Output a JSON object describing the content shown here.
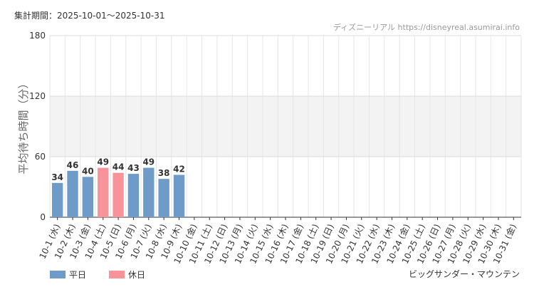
{
  "header": "集計期間：2025-10-01～2025-10-31",
  "source": "ディズニーリアル https://disneyreal.asumirai.info",
  "chart_data": {
    "type": "bar",
    "y_label": "平均待ち時間（分）",
    "caption": "ビッグサンダー・マウンテン",
    "categories": [
      "10-1 (水)",
      "10-2 (木)",
      "10-3 (金)",
      "10-4 (土)",
      "10-5 (日)",
      "10-6 (月)",
      "10-7 (火)",
      "10-8 (水)",
      "10-9 (木)",
      "10-10 (金)",
      "10-11 (土)",
      "10-12 (日)",
      "10-13 (月)",
      "10-14 (火)",
      "10-15 (水)",
      "10-16 (木)",
      "10-17 (金)",
      "10-18 (土)",
      "10-19 (日)",
      "10-20 (月)",
      "10-21 (火)",
      "10-22 (水)",
      "10-23 (木)",
      "10-24 (金)",
      "10-25 (土)",
      "10-26 (日)",
      "10-27 (月)",
      "10-28 (火)",
      "10-29 (水)",
      "10-30 (木)",
      "10-31 (金)"
    ],
    "category_colors": [
      "#333333",
      "#333333",
      "#333333",
      "#f07f86",
      "#f07f86",
      "#333333",
      "#333333",
      "#333333",
      "#333333",
      "#333333",
      "#f07f86",
      "#f07f86",
      "#f07f86",
      "#333333",
      "#333333",
      "#333333",
      "#333333",
      "#f07f86",
      "#f07f86",
      "#333333",
      "#333333",
      "#333333",
      "#333333",
      "#333333",
      "#f07f86",
      "#f07f86",
      "#333333",
      "#333333",
      "#333333",
      "#333333",
      "#333333"
    ],
    "series": [
      {
        "name": "平日",
        "color": "#6f9bc8",
        "label_color": "#4a7fb5",
        "values": [
          34,
          46,
          40,
          null,
          null,
          43,
          49,
          38,
          42,
          null,
          null,
          null,
          null,
          null,
          null,
          null,
          null,
          null,
          null,
          null,
          null,
          null,
          null,
          null,
          null,
          null,
          null,
          null,
          null,
          null,
          null
        ]
      },
      {
        "name": "休日",
        "color": "#f9939a",
        "label_color": "#f07f86",
        "values": [
          null,
          null,
          null,
          49,
          44,
          null,
          null,
          null,
          null,
          null,
          null,
          null,
          null,
          null,
          null,
          null,
          null,
          null,
          null,
          null,
          null,
          null,
          null,
          null,
          null,
          null,
          null,
          null,
          null,
          null,
          null
        ]
      }
    ],
    "ylim": [
      0,
      180
    ],
    "yticks": [
      0,
      60,
      120,
      180
    ],
    "grid": true
  }
}
